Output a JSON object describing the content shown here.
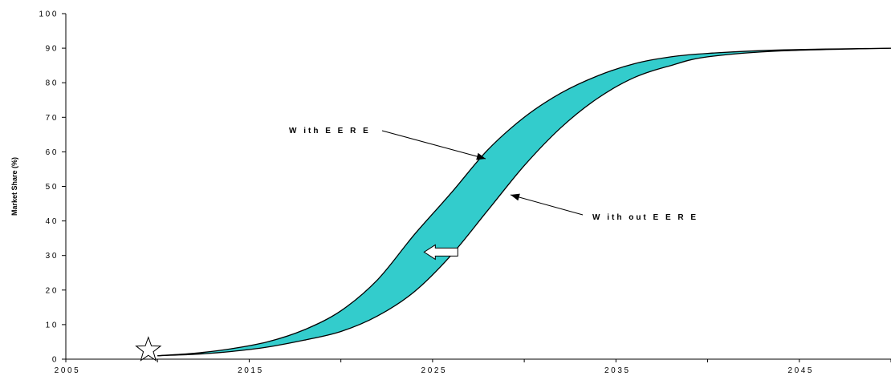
{
  "chart_data": {
    "type": "area",
    "xlabel": "",
    "ylabel": "Market Share (%)",
    "xlim": [
      2005,
      2050
    ],
    "ylim": [
      0,
      100
    ],
    "x_ticks": [
      "2005",
      "2015",
      "2025",
      "2035",
      "2045"
    ],
    "y_ticks": [
      "0",
      "10",
      "20",
      "30",
      "40",
      "50",
      "60",
      "70",
      "80",
      "90",
      "100"
    ],
    "grid": false,
    "band_color": "#33CCCC",
    "series": [
      {
        "name": "With EERE",
        "x": [
          2010,
          2012,
          2014,
          2016,
          2018,
          2020,
          2022,
          2024,
          2026,
          2028,
          2030,
          2032,
          2034,
          2036,
          2038,
          2040,
          2044,
          2050
        ],
        "y": [
          1,
          1.7,
          3,
          5,
          8.5,
          14,
          23,
          36,
          48,
          60.5,
          70,
          77,
          82,
          85.5,
          87.5,
          88.5,
          89.5,
          90
        ]
      },
      {
        "name": "Without EERE",
        "x": [
          2010,
          2012,
          2014,
          2016,
          2018,
          2020,
          2022,
          2024,
          2026,
          2028,
          2030,
          2032,
          2034,
          2036,
          2038,
          2040,
          2044,
          2050
        ],
        "y": [
          1,
          1.4,
          2.2,
          3.5,
          5.5,
          8,
          12.5,
          19.5,
          30,
          43,
          56,
          67,
          75.5,
          81.5,
          85,
          87.5,
          89.2,
          90
        ]
      }
    ],
    "annotations": [
      {
        "text": "W ith  E E R E",
        "target_series": "With EERE"
      },
      {
        "text": "W ith out  E E R E",
        "target_series": "Without EERE"
      }
    ],
    "marker_label": "star",
    "marker_x": 2009.5,
    "marker_y": 1,
    "shift_arrow": {
      "x": 2025.5,
      "y": 31,
      "direction": "left"
    }
  }
}
